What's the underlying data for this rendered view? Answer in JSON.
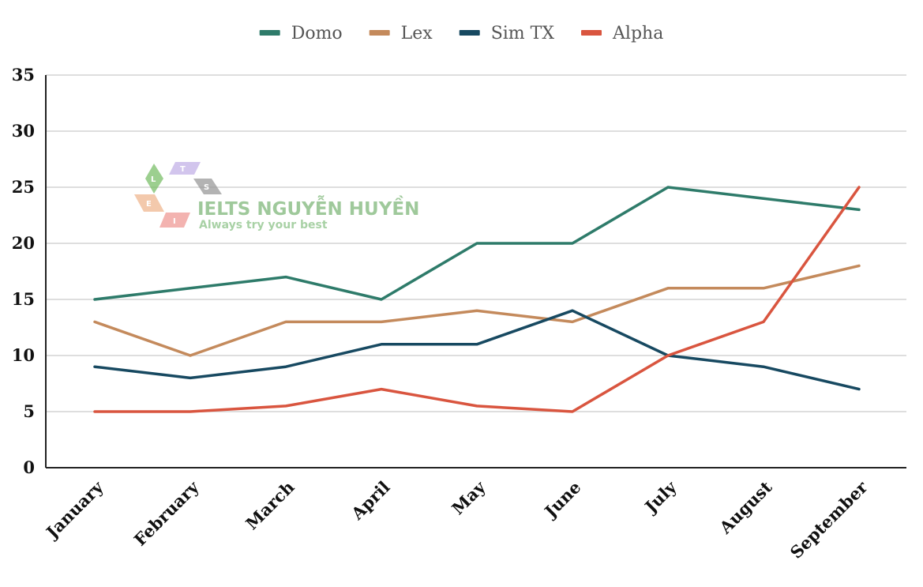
{
  "chart_data": {
    "type": "line",
    "categories": [
      "January",
      "February",
      "March",
      "April",
      "May",
      "June",
      "July",
      "August",
      "September"
    ],
    "series": [
      {
        "name": "Domo",
        "color": "#2e7b6a",
        "values": [
          15,
          16,
          17,
          15,
          20,
          20,
          25,
          24,
          23
        ]
      },
      {
        "name": "Lex",
        "color": "#c48a5c",
        "values": [
          13,
          10,
          13,
          13,
          14,
          13,
          16,
          16,
          18
        ]
      },
      {
        "name": "Sim TX",
        "color": "#174961",
        "values": [
          9,
          8,
          9,
          11,
          11,
          14,
          10,
          9,
          7
        ]
      },
      {
        "name": "Alpha",
        "color": "#d9553f",
        "values": [
          5,
          5,
          5.5,
          7,
          5.5,
          5,
          10,
          13,
          25
        ]
      }
    ],
    "yticks": [
      "0",
      "5",
      "10",
      "15",
      "20",
      "25",
      "30",
      "35"
    ],
    "ylim": [
      0,
      35
    ],
    "grid": true,
    "legend_position": "top-center",
    "title": "",
    "xlabel": "",
    "ylabel": ""
  },
  "watermark": {
    "title": "IELTS NGUYỄN HUYỀN",
    "subtitle": "Always try your best",
    "logo_letters": [
      "L",
      "T",
      "S",
      "E",
      "I"
    ]
  }
}
